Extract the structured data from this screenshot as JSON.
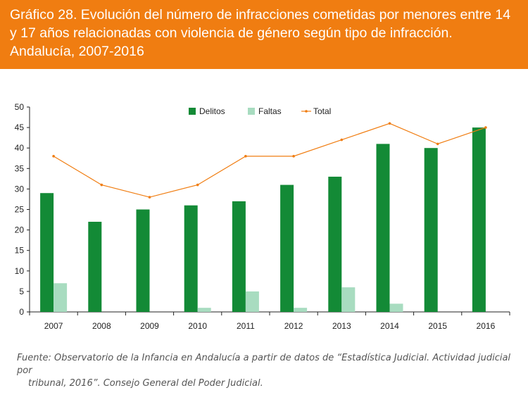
{
  "header": {
    "title": "Gráfico 28. Evolución del número de infracciones cometidas por menores entre 14 y 17 años relacionadas con violencia de género según tipo de infracción. Andalucía, 2007-2016"
  },
  "chart_data": {
    "type": "bar",
    "categories": [
      "2007",
      "2008",
      "2009",
      "2010",
      "2011",
      "2012",
      "2013",
      "2014",
      "2015",
      "2016"
    ],
    "series": [
      {
        "name": "Delitos",
        "kind": "bar",
        "color": "#138a36",
        "values": [
          29,
          22,
          25,
          26,
          27,
          31,
          33,
          41,
          40,
          45
        ]
      },
      {
        "name": "Faltas",
        "kind": "bar",
        "color": "#a8dcc0",
        "values": [
          7,
          0,
          0,
          1,
          5,
          1,
          6,
          2,
          0,
          0
        ]
      },
      {
        "name": "Total",
        "kind": "line",
        "color": "#f07d11",
        "values": [
          38,
          31,
          28,
          31,
          38,
          38,
          42,
          46,
          41,
          45
        ]
      }
    ],
    "yticks": [
      "0",
      "5",
      "10",
      "15",
      "20",
      "25",
      "30",
      "35",
      "40",
      "45",
      "50"
    ],
    "ylim": [
      0,
      50
    ],
    "legend_position": "top-center",
    "title": "",
    "xlabel": "",
    "ylabel": ""
  },
  "source": {
    "line1": "Fuente: Observatorio de la Infancia en Andalucía a partir de datos de “Estadística Judicial. Actividad judicial por",
    "line2": "tribunal, 2016”. Consejo General del Poder Judicial."
  }
}
